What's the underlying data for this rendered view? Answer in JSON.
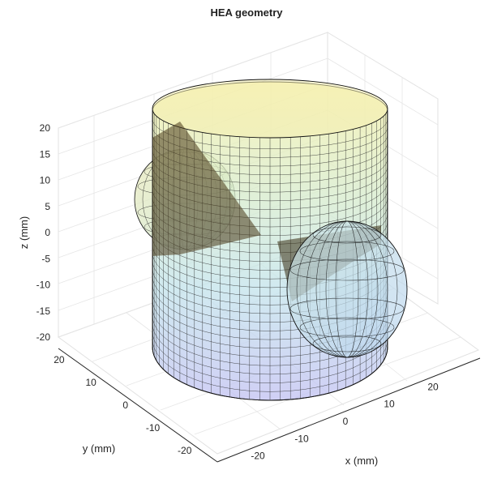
{
  "chart_data": {
    "type": "surface3d",
    "title": "HEA geometry",
    "xlabel": "x (mm)",
    "ylabel": "y (mm)",
    "zlabel": "z (mm)",
    "xlim": [
      -30,
      30
    ],
    "ylim": [
      -25,
      25
    ],
    "zlim": [
      -20,
      20
    ],
    "xticks": [
      "-20",
      "-10",
      "0",
      "10",
      "20"
    ],
    "yticks": [
      "-20",
      "-10",
      "0",
      "10",
      "20"
    ],
    "zticks": [
      "20",
      "15",
      "10",
      "5",
      "0",
      "-5",
      "-10",
      "-15",
      "-20"
    ],
    "grid": true,
    "colormap": "parula (faint)",
    "surfaces": [
      {
        "name": "cylinder",
        "radius": 25,
        "z_range": [
          -20,
          20
        ]
      },
      {
        "name": "hemisphere-left",
        "radius": 12,
        "center": [
          -20,
          10,
          5
        ]
      },
      {
        "name": "hemisphere-right",
        "radius": 12,
        "center": [
          20,
          -10,
          -5
        ]
      }
    ]
  }
}
